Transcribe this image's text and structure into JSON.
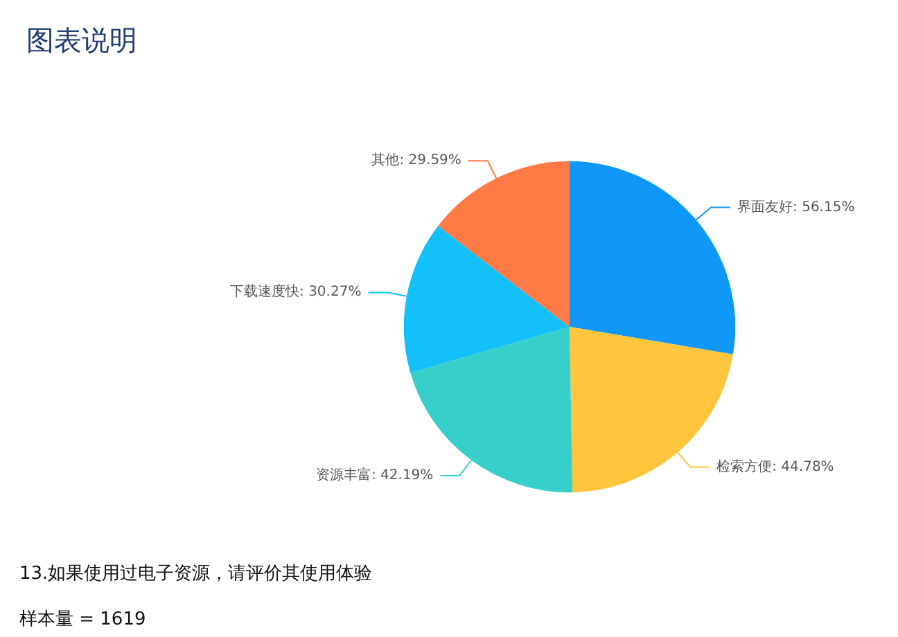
{
  "chart_data": {
    "type": "pie",
    "title": "图表说明",
    "categories": [
      "界面友好",
      "检索方便",
      "资源丰富",
      "下载速度快",
      "其他"
    ],
    "values": [
      56.15,
      44.78,
      42.19,
      30.27,
      29.59
    ],
    "value_labels": [
      "56.15%",
      "44.78%",
      "42.19%",
      "30.27%",
      "29.59%"
    ],
    "colors": [
      "#0f98f7",
      "#ffc53d",
      "#36cfc9",
      "#14c0fa",
      "#ff7a45"
    ],
    "annotations": [
      "13.如果使用过电子资源，请评价其使用体验",
      "样本量 = 1619"
    ]
  }
}
